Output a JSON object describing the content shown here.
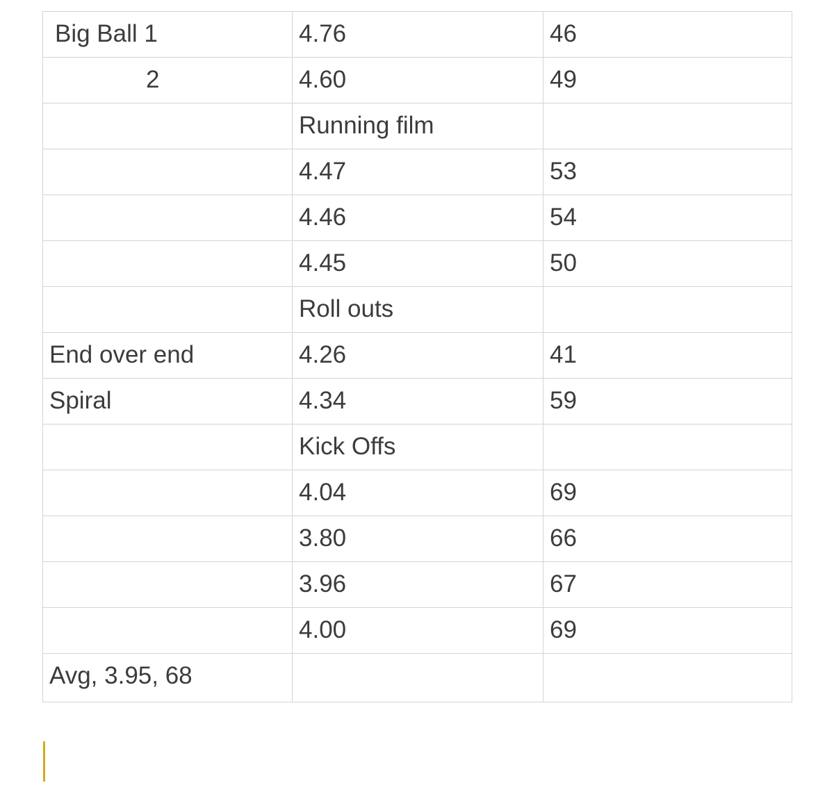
{
  "table": {
    "rows": [
      {
        "c1": "Big Ball 1",
        "c2": "4.76",
        "c3": "46"
      },
      {
        "c1": "2",
        "c2": "4.60",
        "c3": "49"
      },
      {
        "c1": "",
        "c2": "Running film",
        "c3": ""
      },
      {
        "c1": "",
        "c2": "4.47",
        "c3": "53"
      },
      {
        "c1": "",
        "c2": "4.46",
        "c3": "54"
      },
      {
        "c1": "",
        "c2": "4.45",
        "c3": "50"
      },
      {
        "c1": "",
        "c2": "Roll outs",
        "c3": ""
      },
      {
        "c1": "End over end",
        "c2": "4.26",
        "c3": "41"
      },
      {
        "c1": "Spiral",
        "c2": "4.34",
        "c3": "59"
      },
      {
        "c1": "",
        "c2": "Kick Offs",
        "c3": ""
      },
      {
        "c1": "",
        "c2": "4.04",
        "c3": "69"
      },
      {
        "c1": "",
        "c2": "3.80",
        "c3": "66"
      },
      {
        "c1": "",
        "c2": "3.96",
        "c3": "67"
      },
      {
        "c1": "",
        "c2": "4.00",
        "c3": "69"
      },
      {
        "c1": "Avg, 3.95, 68",
        "c2": "",
        "c3": ""
      }
    ]
  },
  "colors": {
    "text": "#3c3c3c",
    "grid": "#d4d4d4",
    "cursor": "#d4ab1e"
  }
}
